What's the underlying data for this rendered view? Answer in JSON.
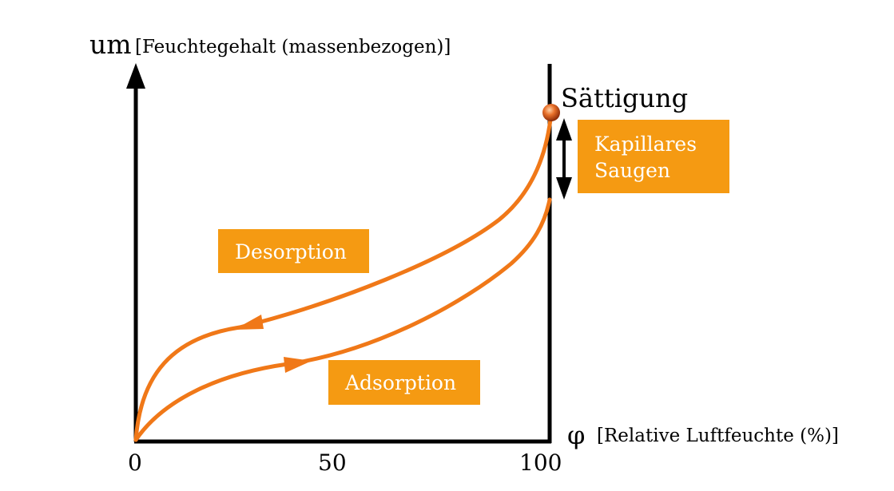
{
  "y_axis": {
    "symbol": "um",
    "label": "[Feuchtegehalt (massenbezogen)]"
  },
  "x_axis": {
    "symbol": "φ",
    "label": "[Relative Luftfeuchte (%)]",
    "ticks": [
      "0",
      "50",
      "100"
    ]
  },
  "saturation_label": "Sättigung",
  "labels": {
    "kapillares_line1": "Kapillares",
    "kapillares_line2": "Saugen",
    "desorption": "Desorption",
    "adsorption": "Adsorption"
  },
  "colors": {
    "curve": "#f07818",
    "box": "#f59a12",
    "axis": "#000000",
    "saturation_dot": "#c0521a"
  }
}
